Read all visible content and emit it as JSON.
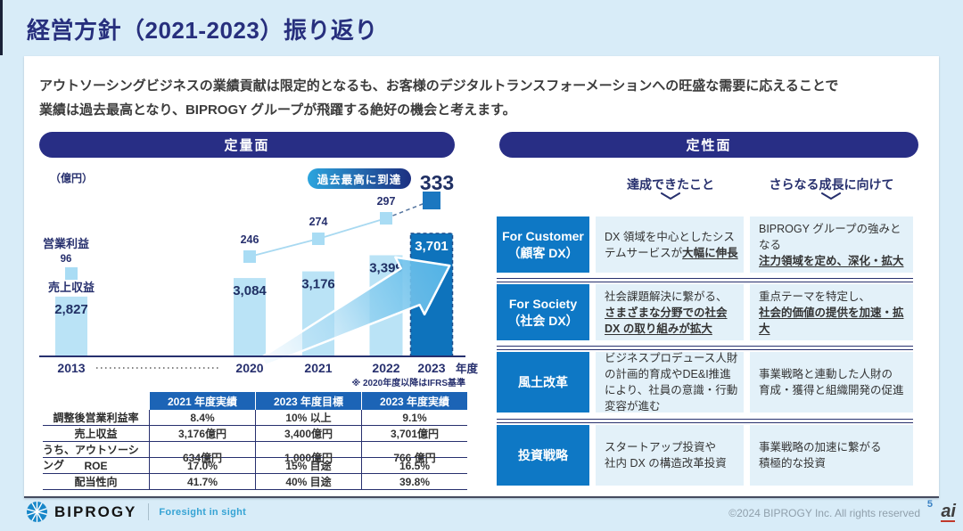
{
  "page": {
    "title": "経営方針（2021-2023）振り返り",
    "intro_line1": "アウトソーシングビジネスの業績貢献は限定的となるも、お客様のデジタルトランスフォーメーションへの旺盛な需要に応えることで",
    "intro_line2": "業績は過去最高となり、BIPROGY グループが飛躍する絶好の機会と考えます。"
  },
  "quantitative": {
    "header": "定量面"
  },
  "chart_data": {
    "type": "bar+line",
    "categories": [
      "2013",
      "2020",
      "2021",
      "2022",
      "2023"
    ],
    "series": [
      {
        "name": "売上収益",
        "type": "bar",
        "values": [
          2827,
          3084,
          3176,
          3399,
          3701
        ],
        "labels": [
          "2,827",
          "3,084",
          "3,176",
          "3,399",
          "3,701"
        ]
      },
      {
        "name": "営業利益",
        "type": "line",
        "values": [
          96,
          246,
          274,
          297,
          333
        ],
        "labels": [
          "96",
          "246",
          "274",
          "297",
          "333"
        ]
      }
    ],
    "unit": "（億円）",
    "axis_suffix": "年度",
    "highlight_index": 4,
    "annotation": "過去最高に到達",
    "note": "※ 2020年度以降はIFRS基準",
    "x_axis_break_between": [
      "2013",
      "2020"
    ],
    "legend_position": "none",
    "grid": false
  },
  "kpi_table": {
    "headers": [
      "",
      "2021 年度実績",
      "2023 年度目標",
      "2023 年度実績"
    ],
    "rows": [
      [
        "調整後営業利益率",
        "8.4%",
        "10% 以上",
        "9.1%"
      ],
      [
        "売上収益",
        "3,176億円",
        "3,400億円",
        "3,701億円"
      ],
      [
        "うち、アウトソーシング",
        "634億円",
        "1,000億円",
        "766 億円"
      ],
      [
        "ROE",
        "17.0%",
        "15% 目途",
        "16.5%"
      ],
      [
        "配当性向",
        "41.7%",
        "40% 目途",
        "39.8%"
      ]
    ]
  },
  "qualitative": {
    "header": "定性面",
    "col_achieved": "達成できたこと",
    "col_next": "さらなる成長に向けて",
    "rows": [
      {
        "label_line1": "For Customer",
        "label_line2": "（顧客 DX）",
        "achieved": [
          {
            "t": "DX 領域を中心としたシステムサービスが"
          },
          {
            "t": "大幅に伸長",
            "em": true
          }
        ],
        "next": [
          {
            "t": "BIPROGY グループの強みとなる",
            "br": true
          },
          {
            "t": "注力領域を定め、深化・拡大",
            "em": true
          }
        ]
      },
      {
        "label_line1": "For Society",
        "label_line2": "（社会 DX）",
        "achieved": [
          {
            "t": "社会課題解決に繋がる、",
            "br": true
          },
          {
            "t": "さまざまな分野での社会 DX の取り組みが拡大",
            "em": true
          }
        ],
        "next": [
          {
            "t": "重点テーマを特定し、",
            "br": true
          },
          {
            "t": "社会的価値の提供を加速・拡大",
            "em": true
          }
        ]
      },
      {
        "label_line1": "風土改革",
        "label_line2": "",
        "achieved": [
          {
            "t": "ビジネスプロデュース人財の計画的育成やDE&I推進により、社員の意識・行動変容が進む"
          }
        ],
        "next": [
          {
            "t": "事業戦略と連動した人財の",
            "br": true
          },
          {
            "t": "育成・獲得と組織開発の促進"
          }
        ]
      },
      {
        "label_line1": "投資戦略",
        "label_line2": "",
        "achieved": [
          {
            "t": "スタートアップ投資や",
            "br": true
          },
          {
            "t": "社内 DX の構造改革投資"
          }
        ],
        "next": [
          {
            "t": "事業戦略の加速に繋がる",
            "br": true
          },
          {
            "t": "積極的な投資"
          }
        ]
      }
    ]
  },
  "footer": {
    "brand": "BIPROGY",
    "tagline": "Foresight in sight",
    "copyright": "©2024 BIPROGY Inc. All rights reserved",
    "page_number": "5",
    "watermark": "ai"
  },
  "colors": {
    "background": "#d8ecf8",
    "navy": "#27306e",
    "pill_navy": "#282e85",
    "table_header_blue": "#1c64b6",
    "row_label_blue": "#0e78c5",
    "light_cell": "#e3f1f9",
    "bar_light": "#bae3f6",
    "bar_dark": "#0e73bc",
    "badge_gradient_from": "#2ca5de",
    "badge_gradient_to": "#1c2f80"
  }
}
